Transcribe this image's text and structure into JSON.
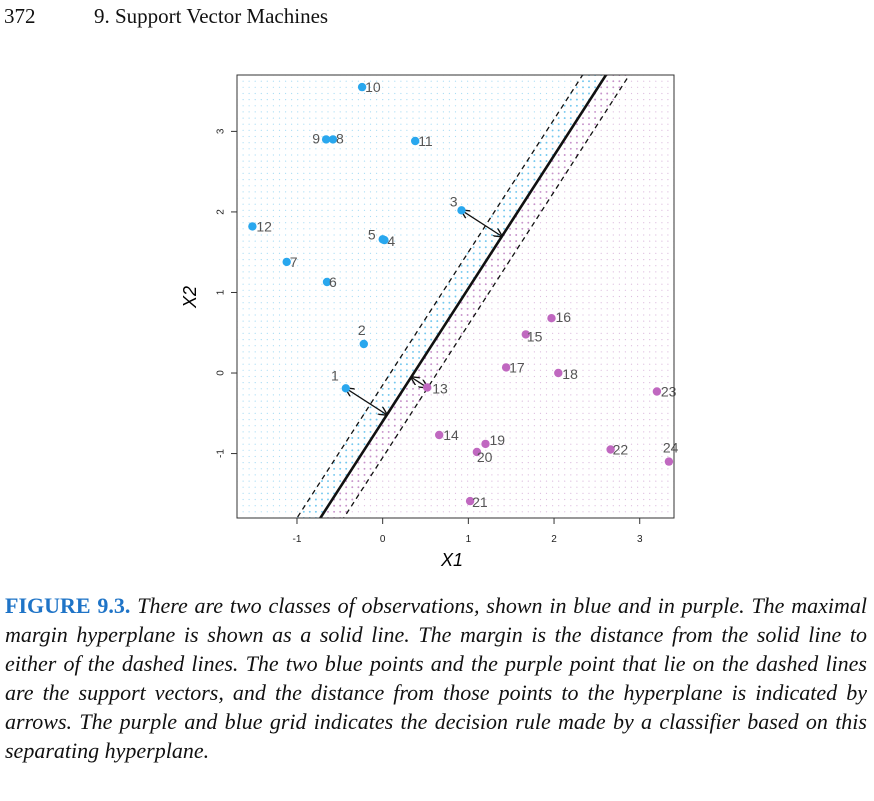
{
  "page": {
    "number": "372",
    "chapter": "9.  Support Vector Machines"
  },
  "figure": {
    "label": "FIGURE 9.3.",
    "caption": "There are two classes of observations, shown in blue and in purple. The maximal margin hyperplane is shown as a solid line. The margin is the distance from the solid line to either of the dashed lines. The two blue points and the purple point that lie on the dashed lines are the support vectors, and the distance from those points to the hyperplane is indicated by arrows. The purple and blue grid indicates the decision rule made by a classifier based on this separating hyperplane."
  },
  "chart_data": {
    "type": "scatter",
    "xlabel": "X1",
    "ylabel": "X2",
    "xlim": [
      -1.7,
      3.4
    ],
    "ylim": [
      -1.8,
      3.7
    ],
    "xticks": [
      -1,
      0,
      1,
      2,
      3
    ],
    "yticks": [
      -1,
      0,
      1,
      2,
      3
    ],
    "colors": {
      "blue": "#29a7ee",
      "purple": "#c068c0",
      "grid_blue": "#6cc4ee",
      "grid_purple": "#c48ec8",
      "axis": "#333333"
    },
    "hyperplane": {
      "slope": 1.65,
      "intercept": -0.6,
      "margin_intercept_offset": 0.45
    },
    "series": [
      {
        "name": "blue",
        "points": [
          {
            "label": "1",
            "x": -0.43,
            "y": -0.19
          },
          {
            "label": "2",
            "x": -0.22,
            "y": 0.36
          },
          {
            "label": "3",
            "x": 0.92,
            "y": 2.02
          },
          {
            "label": "4",
            "x": 0.02,
            "y": 1.65
          },
          {
            "label": "5",
            "x": 0.0,
            "y": 1.66
          },
          {
            "label": "6",
            "x": -0.65,
            "y": 1.13
          },
          {
            "label": "7",
            "x": -1.12,
            "y": 1.38
          },
          {
            "label": "8",
            "x": -0.58,
            "y": 2.9
          },
          {
            "label": "9",
            "x": -0.66,
            "y": 2.9
          },
          {
            "label": "10",
            "x": -0.24,
            "y": 3.55
          },
          {
            "label": "11",
            "x": 0.38,
            "y": 2.88
          },
          {
            "label": "12",
            "x": -1.52,
            "y": 1.82
          }
        ]
      },
      {
        "name": "purple",
        "points": [
          {
            "label": "13",
            "x": 0.52,
            "y": -0.18
          },
          {
            "label": "14",
            "x": 0.66,
            "y": -0.77
          },
          {
            "label": "15",
            "x": 1.67,
            "y": 0.48
          },
          {
            "label": "16",
            "x": 1.97,
            "y": 0.68
          },
          {
            "label": "17",
            "x": 1.44,
            "y": 0.07
          },
          {
            "label": "18",
            "x": 2.05,
            "y": 0.0
          },
          {
            "label": "19",
            "x": 1.2,
            "y": -0.88
          },
          {
            "label": "20",
            "x": 1.1,
            "y": -0.98
          },
          {
            "label": "21",
            "x": 1.02,
            "y": -1.59
          },
          {
            "label": "22",
            "x": 2.66,
            "y": -0.95
          },
          {
            "label": "23",
            "x": 3.2,
            "y": -0.23
          },
          {
            "label": "24",
            "x": 3.34,
            "y": -1.1
          }
        ]
      }
    ]
  }
}
